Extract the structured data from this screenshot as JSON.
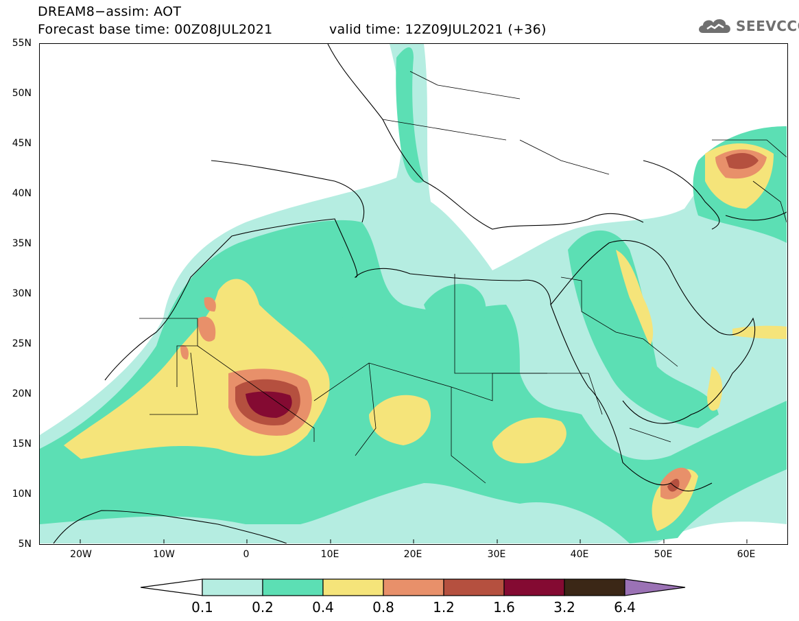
{
  "header": {
    "title_line": "DREAM8−assim: AOT",
    "base_time": "Forecast base time: 00Z08JUL2021",
    "valid_time": "valid time: 12Z09JUL2021 (+36)",
    "logo_text": "SEEVCCC",
    "logo_icon": "cloud-logo-icon"
  },
  "map": {
    "lat_range": [
      5,
      55
    ],
    "lon_range": [
      -25,
      65
    ],
    "lat_labels": [
      "55N",
      "50N",
      "45N",
      "40N",
      "35N",
      "30N",
      "25N",
      "20N",
      "15N",
      "10N",
      "5N"
    ],
    "lon_labels": [
      "20W",
      "10W",
      "0",
      "10E",
      "20E",
      "30E",
      "40E",
      "50E",
      "60E"
    ],
    "variable": "AOT"
  },
  "colorbar": {
    "labels": [
      "0.1",
      "0.2",
      "0.4",
      "0.8",
      "1.2",
      "1.6",
      "3.2",
      "6.4"
    ],
    "colors": {
      "0.1-0.2": "#b5ede1",
      "0.2-0.4": "#5cdfb4",
      "0.4-0.8": "#f5e47a",
      "0.8-1.2": "#e8906a",
      "1.2-1.6": "#b5503f",
      "1.6-3.2": "#840a32",
      "3.2-6.4": "#3b2716",
      "6.4+": "#9b72b5"
    }
  }
}
